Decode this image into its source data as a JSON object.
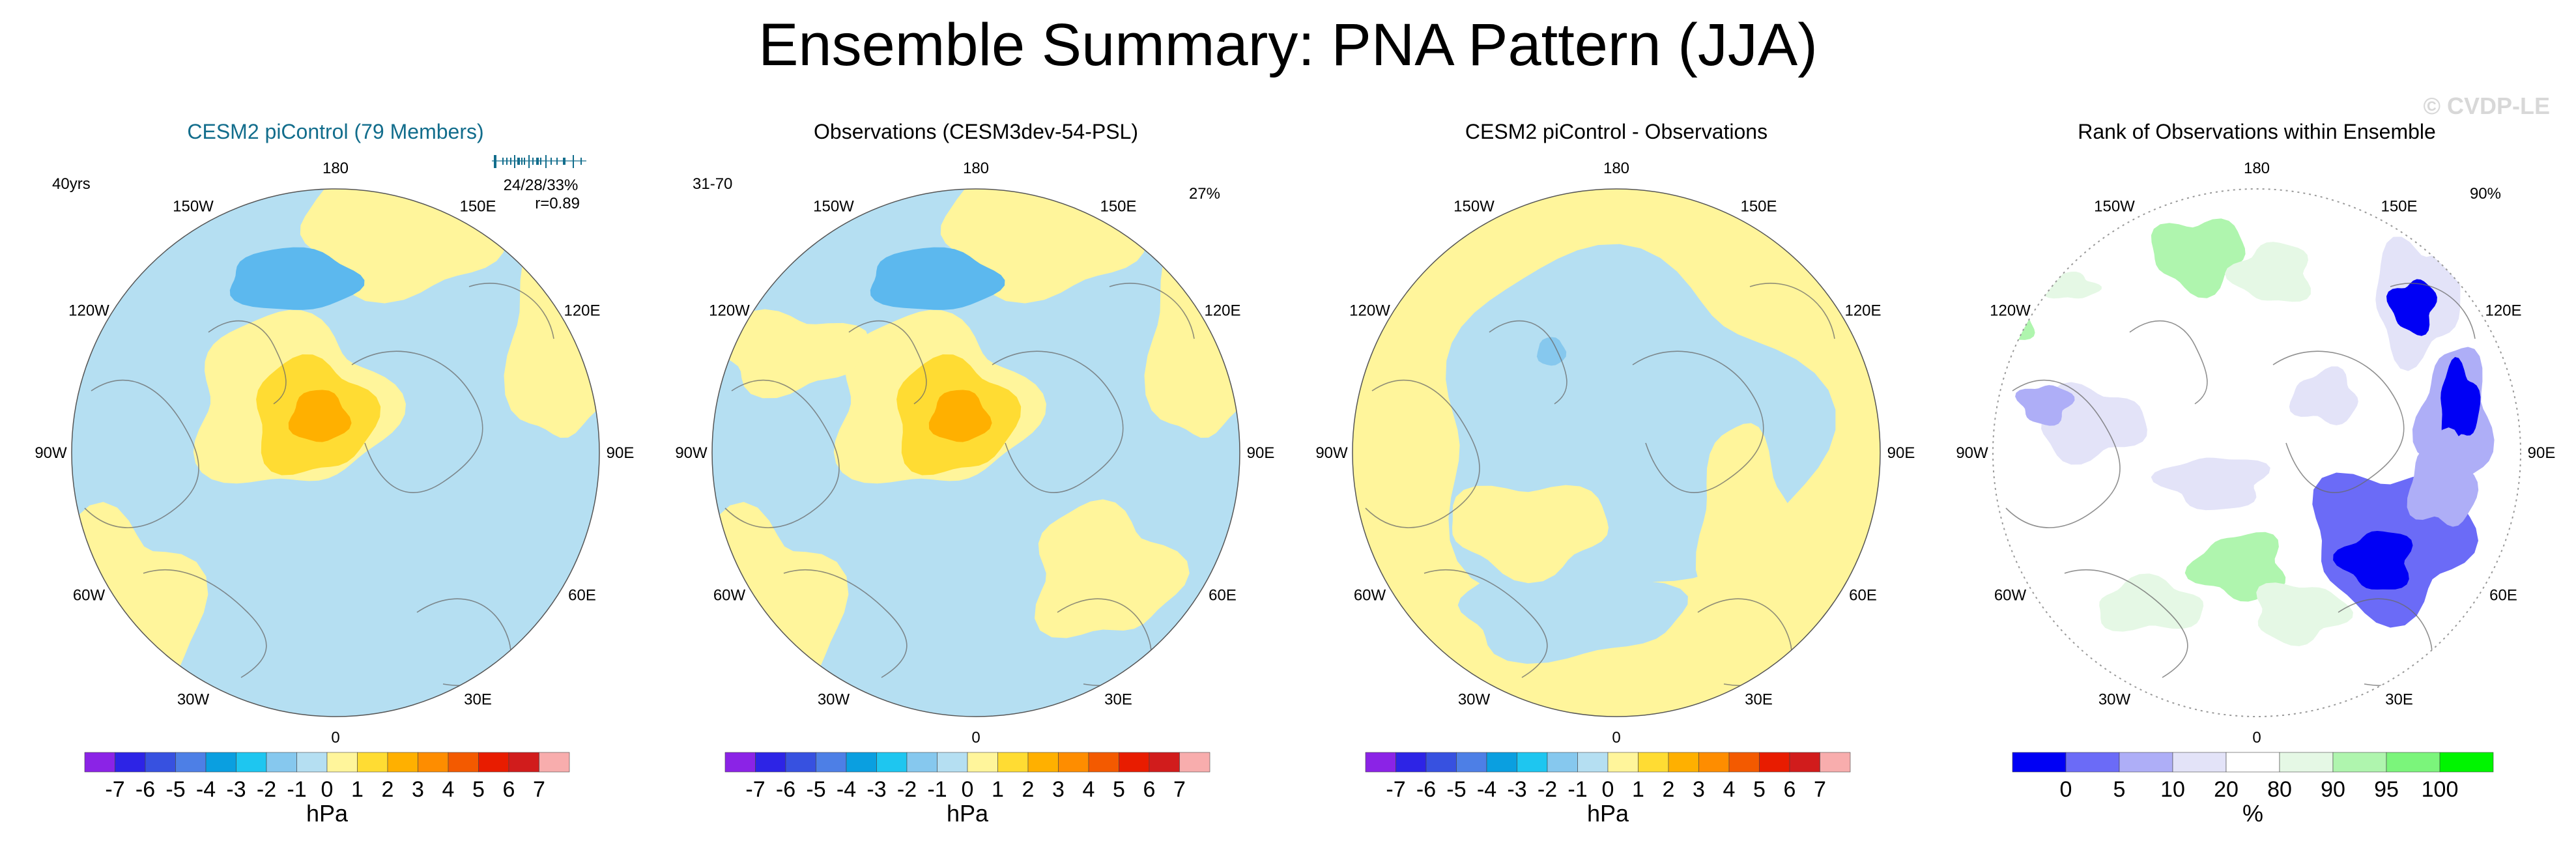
{
  "title": "Ensemble Summary: PNA Pattern (JJA)",
  "watermark": "© CVDP-LE",
  "colors": {
    "diverging": [
      "#8b23e6",
      "#2d24e6",
      "#3751e0",
      "#4d7fe6",
      "#0a9fe0",
      "#1ec6f0",
      "#86c8ee",
      "#b5dff2",
      "#fff59b",
      "#ffdc33",
      "#ffb000",
      "#fe8d00",
      "#f35a00",
      "#e81c00",
      "#d11c1c",
      "#f8adad"
    ],
    "rank": [
      "#0000f5",
      "#6b6bf7",
      "#aeaef7",
      "#e3e3f8",
      "#ffffff",
      "#e5f8e5",
      "#aff5ae",
      "#7bf57b",
      "#00f500"
    ],
    "map_positive_light": "#fff59b",
    "map_positive_mid": "#ffdc33",
    "map_positive_strong": "#ffb000",
    "map_negative_light": "#b5dff2",
    "map_negative_mid": "#86c8ee",
    "map_negative_strong": "#5cb8ee",
    "title_blue": "#126d8c"
  },
  "meridian_labels": [
    "180",
    "150E",
    "120E",
    "90E",
    "60E",
    "30E",
    "0",
    "30W",
    "60W",
    "90W",
    "120W",
    "150W"
  ],
  "panels": [
    {
      "title": "CESM2 piControl (79 Members)",
      "left_note": "40yrs",
      "right_note": "",
      "stat_line1": "24/28/33%",
      "stat_line2": "r=0.89",
      "colorbar": "diverging",
      "chart_data": {
        "type": "heatmap",
        "title": "CESM2 piControl (79 Members)",
        "projection": "north-polar-stereographic",
        "units": "hPa",
        "levels": [
          "-7",
          "-6",
          "-5",
          "-4",
          "-3",
          "-2",
          "-1",
          "0",
          "1",
          "2",
          "3",
          "4",
          "5",
          "6",
          "7"
        ],
        "features": [
          {
            "name": "north-pacific-low",
            "region": "North Pacific",
            "value": "-2 to -1 hPa"
          },
          {
            "name": "arctic-high",
            "region": "Arctic / Greenland",
            "value": "1 to 3 hPa"
          },
          {
            "name": "subtropical-positive-band",
            "region": "low latitudes",
            "value": "0 to 1 hPa"
          }
        ]
      }
    },
    {
      "title": "Observations (CESM3dev-54-PSL)",
      "left_note": "31-70",
      "right_note": "27%",
      "colorbar": "diverging",
      "chart_data": {
        "type": "heatmap",
        "title": "Observations (CESM3dev-54-PSL)",
        "projection": "north-polar-stereographic",
        "units": "hPa",
        "levels": [
          "-7",
          "-6",
          "-5",
          "-4",
          "-3",
          "-2",
          "-1",
          "0",
          "1",
          "2",
          "3",
          "4",
          "5",
          "6",
          "7"
        ],
        "features": [
          {
            "name": "north-pacific-low",
            "region": "North Pacific",
            "value": "-2 to -1 hPa"
          },
          {
            "name": "arctic-high",
            "region": "Arctic / Greenland",
            "value": "1 to 3 hPa"
          },
          {
            "name": "mixed-low-latitudes",
            "region": "low latitudes",
            "value": "-1 to 1 hPa"
          }
        ]
      }
    },
    {
      "title": "CESM2 piControl - Observations",
      "left_note": "",
      "right_note": "",
      "colorbar": "diverging",
      "chart_data": {
        "type": "heatmap",
        "title": "CESM2 piControl - Observations",
        "projection": "north-polar-stereographic",
        "units": "hPa",
        "levels": [
          "-7",
          "-6",
          "-5",
          "-4",
          "-3",
          "-2",
          "-1",
          "0",
          "1",
          "2",
          "3",
          "4",
          "5",
          "6",
          "7"
        ],
        "features": [
          {
            "name": "high-latitude-negative",
            "region": "Arctic / Eurasia",
            "value": "-1 to 0 hPa"
          },
          {
            "name": "outer-positive",
            "region": "mid/low latitudes",
            "value": "0 to 1 hPa"
          }
        ]
      }
    },
    {
      "title": "Rank of Observations within Ensemble",
      "left_note": "",
      "right_note": "90%",
      "colorbar": "rank",
      "chart_data": {
        "type": "heatmap",
        "title": "Rank of Observations within Ensemble",
        "projection": "north-polar-stereographic",
        "units": "%",
        "levels": [
          "0",
          "5",
          "10",
          "20",
          "80",
          "90",
          "95",
          "100"
        ],
        "features": [
          {
            "name": "low-rank-pacific",
            "region": "North Pacific",
            "value": "0-10 %"
          },
          {
            "name": "low-rank-eurasia",
            "region": "Siberia / East Asia",
            "value": "0-10 %"
          },
          {
            "name": "high-rank-atlantic",
            "region": "North Atlantic",
            "value": "80-95 %"
          }
        ]
      }
    }
  ],
  "colorbars": {
    "diverging": {
      "ticks": [
        "-7",
        "-6",
        "-5",
        "-4",
        "-3",
        "-2",
        "-1",
        "0",
        "1",
        "2",
        "3",
        "4",
        "5",
        "6",
        "7"
      ],
      "unit": "hPa"
    },
    "rank": {
      "ticks": [
        "0",
        "5",
        "10",
        "20",
        "80",
        "90",
        "95",
        "100"
      ],
      "unit": "%"
    }
  }
}
